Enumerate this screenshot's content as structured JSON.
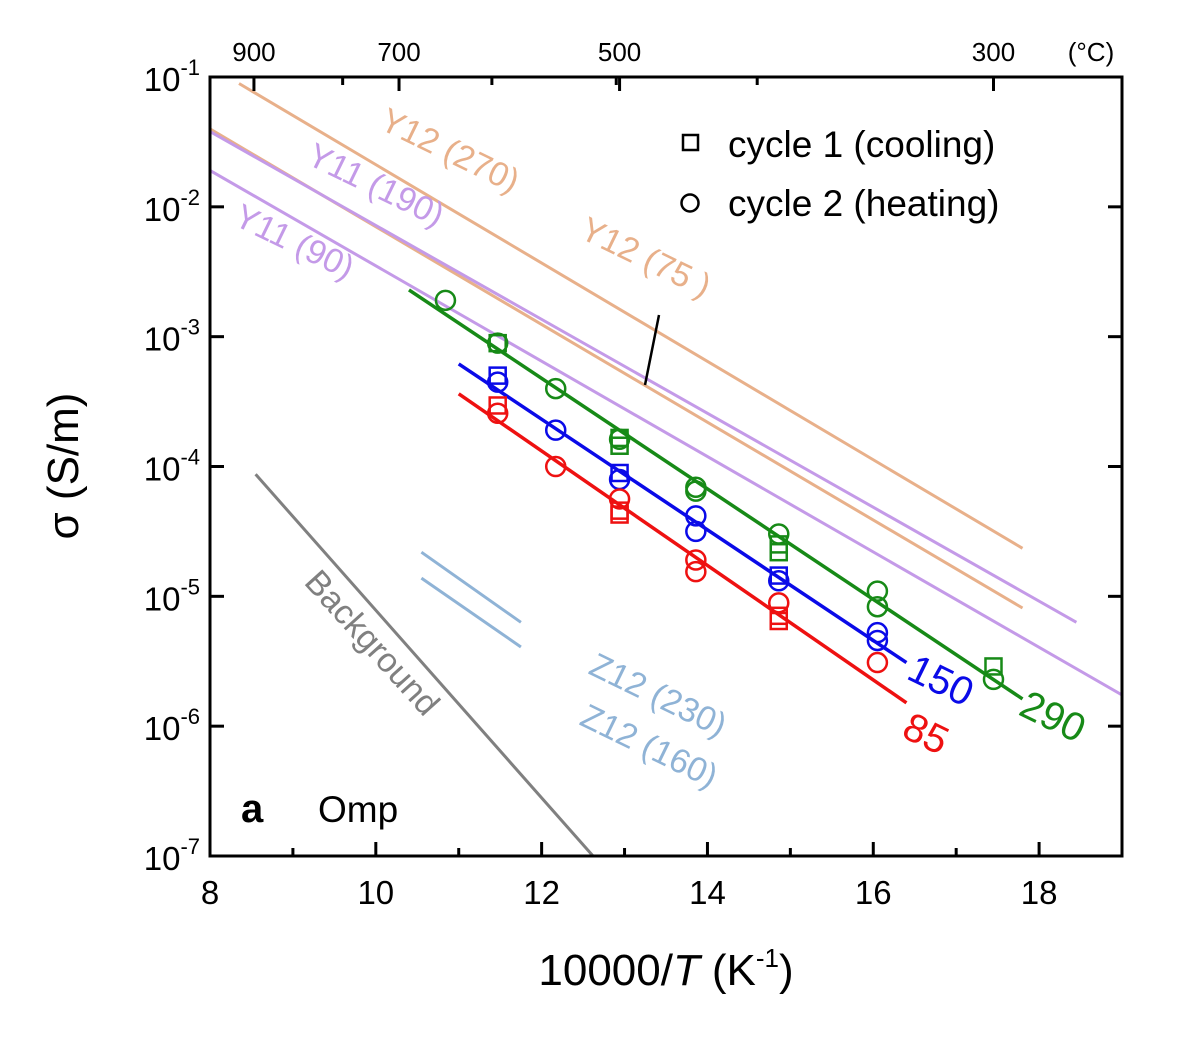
{
  "chart_data": {
    "type": "scatter",
    "panel_label": "a",
    "sample_label": "Omp",
    "xlabel": "10000/",
    "xlabel_var": "T",
    "xlabel_unit_base": "(K",
    "xlabel_unit_exp": "-1",
    "xlabel_unit_close": ")",
    "ylabel": "σ (S/m)",
    "xlim": [
      8,
      19
    ],
    "ylim_log10": [
      -7,
      -1
    ],
    "yscale": "log",
    "x_ticks": [
      "8",
      "10",
      "12",
      "14",
      "16",
      "18"
    ],
    "y_ticks": [
      {
        "base": "10",
        "exp": "-1"
      },
      {
        "base": "10",
        "exp": "-2"
      },
      {
        "base": "10",
        "exp": "-3"
      },
      {
        "base": "10",
        "exp": "-4"
      },
      {
        "base": "10",
        "exp": "-5"
      },
      {
        "base": "10",
        "exp": "-6"
      },
      {
        "base": "10",
        "exp": "-7"
      }
    ],
    "top_axis": {
      "unit": "(°C)",
      "ticks": [
        {
          "label": "900",
          "x": 8.53
        },
        {
          "label": "700",
          "x": 10.28
        },
        {
          "label": "500",
          "x": 12.94
        },
        {
          "label": "300",
          "x": 17.45
        }
      ]
    },
    "legend": [
      {
        "marker": "square",
        "label": "cycle 1 (cooling)"
      },
      {
        "marker": "circle",
        "label": "cycle 2 (heating)"
      }
    ],
    "series": [
      {
        "name": "290",
        "color": "#178A17",
        "fit": {
          "x": [
            10.4,
            17.8
          ],
          "log10y": [
            -2.64,
            -5.79
          ]
        },
        "points": [
          {
            "x": 10.84,
            "log10y": -2.72,
            "marker": "circle"
          },
          {
            "x": 11.47,
            "log10y": -3.05,
            "marker": "square"
          },
          {
            "x": 11.47,
            "log10y": -3.05,
            "marker": "circle"
          },
          {
            "x": 12.17,
            "log10y": -3.4,
            "marker": "circle"
          },
          {
            "x": 12.94,
            "log10y": -3.78,
            "marker": "square"
          },
          {
            "x": 12.94,
            "log10y": -3.84,
            "marker": "square"
          },
          {
            "x": 12.94,
            "log10y": -3.79,
            "marker": "circle"
          },
          {
            "x": 13.86,
            "log10y": -4.16,
            "marker": "circle"
          },
          {
            "x": 13.86,
            "log10y": -4.19,
            "marker": "circle"
          },
          {
            "x": 14.86,
            "log10y": -4.52,
            "marker": "circle"
          },
          {
            "x": 14.86,
            "log10y": -4.6,
            "marker": "square"
          },
          {
            "x": 14.86,
            "log10y": -4.66,
            "marker": "square"
          },
          {
            "x": 16.05,
            "log10y": -4.96,
            "marker": "circle"
          },
          {
            "x": 16.05,
            "log10y": -5.08,
            "marker": "circle"
          },
          {
            "x": 17.45,
            "log10y": -5.54,
            "marker": "square"
          },
          {
            "x": 17.45,
            "log10y": -5.64,
            "marker": "circle"
          }
        ]
      },
      {
        "name": "150",
        "color": "#0A0AE8",
        "fit": {
          "x": [
            11.0,
            16.4
          ],
          "log10y": [
            -3.21,
            -5.51
          ]
        },
        "points": [
          {
            "x": 11.47,
            "log10y": -3.3,
            "marker": "square"
          },
          {
            "x": 11.47,
            "log10y": -3.35,
            "marker": "circle"
          },
          {
            "x": 12.17,
            "log10y": -3.72,
            "marker": "circle"
          },
          {
            "x": 12.94,
            "log10y": -4.05,
            "marker": "square"
          },
          {
            "x": 12.94,
            "log10y": -4.1,
            "marker": "circle"
          },
          {
            "x": 13.86,
            "log10y": -4.38,
            "marker": "circle"
          },
          {
            "x": 13.86,
            "log10y": -4.5,
            "marker": "circle"
          },
          {
            "x": 14.86,
            "log10y": -4.84,
            "marker": "square"
          },
          {
            "x": 14.86,
            "log10y": -4.88,
            "marker": "circle"
          },
          {
            "x": 16.05,
            "log10y": -5.28,
            "marker": "circle"
          },
          {
            "x": 16.05,
            "log10y": -5.34,
            "marker": "circle"
          }
        ]
      },
      {
        "name": "85",
        "color": "#EE1111",
        "fit": {
          "x": [
            11.0,
            16.4
          ],
          "log10y": [
            -3.44,
            -5.82
          ]
        },
        "points": [
          {
            "x": 11.47,
            "log10y": -3.53,
            "marker": "square"
          },
          {
            "x": 11.47,
            "log10y": -3.59,
            "marker": "circle"
          },
          {
            "x": 12.17,
            "log10y": -4.0,
            "marker": "circle"
          },
          {
            "x": 12.94,
            "log10y": -4.25,
            "marker": "circle"
          },
          {
            "x": 12.94,
            "log10y": -4.34,
            "marker": "square"
          },
          {
            "x": 12.94,
            "log10y": -4.37,
            "marker": "square"
          },
          {
            "x": 13.86,
            "log10y": -4.72,
            "marker": "circle"
          },
          {
            "x": 13.86,
            "log10y": -4.81,
            "marker": "circle"
          },
          {
            "x": 14.86,
            "log10y": -5.05,
            "marker": "circle"
          },
          {
            "x": 14.86,
            "log10y": -5.15,
            "marker": "square"
          },
          {
            "x": 14.86,
            "log10y": -5.19,
            "marker": "square"
          },
          {
            "x": 16.05,
            "log10y": -5.51,
            "marker": "circle"
          }
        ]
      }
    ],
    "reference_lines": [
      {
        "name": "Y12 (270)",
        "color": "#E8B08A",
        "x": [
          8.35,
          17.8
        ],
        "log10y": [
          -1.05,
          -4.63
        ]
      },
      {
        "name": "Y12 (75 )",
        "color": "#E8B08A",
        "x": [
          8.0,
          17.8
        ],
        "log10y": [
          -1.4,
          -5.09
        ]
      },
      {
        "name": "Y11 (190)",
        "color": "#C49AE8",
        "x": [
          8.0,
          18.45
        ],
        "log10y": [
          -1.42,
          -5.2
        ]
      },
      {
        "name": "Y11 (90)",
        "color": "#C49AE8",
        "x": [
          8.0,
          19.0
        ],
        "log10y": [
          -1.72,
          -5.76
        ]
      },
      {
        "name": "Z12 (230)",
        "color": "#8FB3D6",
        "x": [
          10.55,
          11.75
        ],
        "log10y": [
          -4.66,
          -5.2
        ]
      },
      {
        "name": "Z12 (160)",
        "color": "#8FB3D6",
        "x": [
          10.55,
          11.75
        ],
        "log10y": [
          -4.86,
          -5.39
        ]
      },
      {
        "name": "Background",
        "color": "#808080",
        "x": [
          8.55,
          12.62
        ],
        "log10y": [
          -4.06,
          -7.0
        ]
      }
    ]
  }
}
